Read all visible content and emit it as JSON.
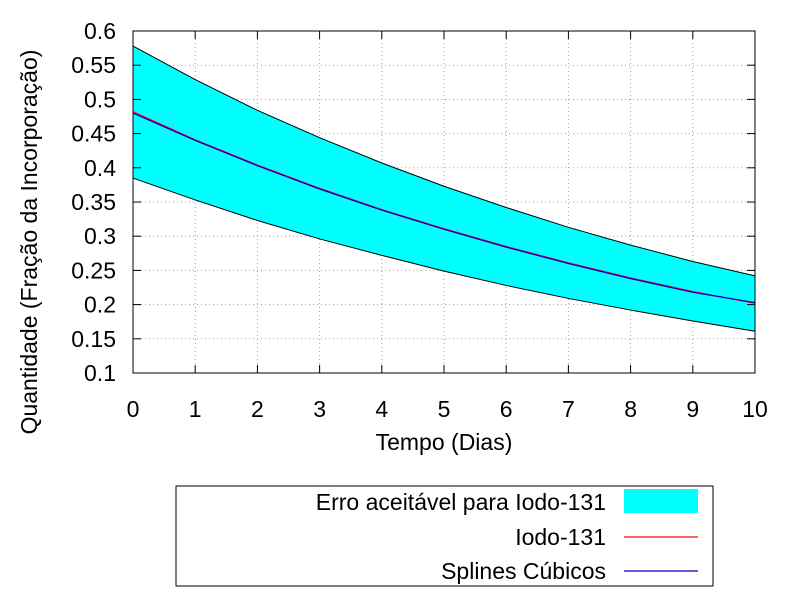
{
  "chart_data": {
    "type": "line",
    "xlabel": "Tempo (Dias)",
    "ylabel": "Quantidade (Fração da Incorporação)",
    "xlim": [
      0,
      10
    ],
    "ylim": [
      0.1,
      0.6
    ],
    "xticks": [
      0,
      1,
      2,
      3,
      4,
      5,
      6,
      7,
      8,
      9,
      10
    ],
    "yticks": [
      0.1,
      0.15,
      0.2,
      0.25,
      0.3,
      0.35,
      0.4,
      0.45,
      0.5,
      0.55,
      0.6
    ],
    "ytick_labels": [
      "0.1",
      "0.15",
      "0.2",
      "0.25",
      "0.3",
      "0.35",
      "0.4",
      "0.45",
      "0.5",
      "0.55",
      "0.6"
    ],
    "grid": true,
    "legend_position": "bottom",
    "band": {
      "name": "Erro aceitável para Iodo-131",
      "color": "#00ffff",
      "x": [
        0,
        1,
        2,
        3,
        4,
        5,
        6,
        7,
        8,
        9,
        10
      ],
      "upper": [
        0.578,
        0.529,
        0.484,
        0.444,
        0.407,
        0.373,
        0.342,
        0.313,
        0.287,
        0.263,
        0.242
      ],
      "lower": [
        0.385,
        0.353,
        0.323,
        0.296,
        0.272,
        0.249,
        0.228,
        0.209,
        0.192,
        0.176,
        0.161
      ]
    },
    "series": [
      {
        "name": "Iodo-131",
        "color": "#ff0000",
        "x": [
          0,
          1,
          2,
          3,
          4,
          5,
          6,
          7,
          8,
          9,
          10
        ],
        "values": [
          0.482,
          0.441,
          0.404,
          0.37,
          0.339,
          0.311,
          0.285,
          0.261,
          0.239,
          0.219,
          0.202
        ]
      },
      {
        "name": "Splines Cúbicos",
        "color": "#0000cc",
        "x": [
          0,
          1,
          2,
          3,
          4,
          5,
          6,
          7,
          8,
          9,
          10
        ],
        "values": [
          0.48,
          0.44,
          0.403,
          0.369,
          0.338,
          0.31,
          0.284,
          0.26,
          0.238,
          0.218,
          0.203
        ]
      }
    ]
  }
}
